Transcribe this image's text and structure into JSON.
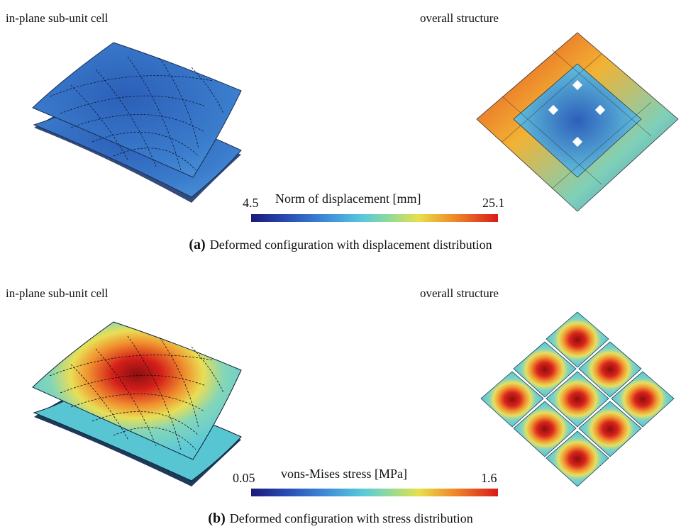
{
  "panel_a": {
    "left_label": "in-plane sub-unit cell",
    "right_label": "overall structure",
    "colorbar": {
      "min": "4.5",
      "title": "Norm of displacement [mm]",
      "max": "25.1"
    },
    "caption_tag": "(a)",
    "caption_text": "Deformed configuration with displacement distribution"
  },
  "panel_b": {
    "left_label": "in-plane sub-unit cell",
    "right_label": "overall structure",
    "colorbar": {
      "min": "0.05",
      "title": "vons-Mises stress [MPa]",
      "max": "1.6"
    },
    "caption_tag": "(b)",
    "caption_text": "Deformed configuration with stress distribution"
  }
}
